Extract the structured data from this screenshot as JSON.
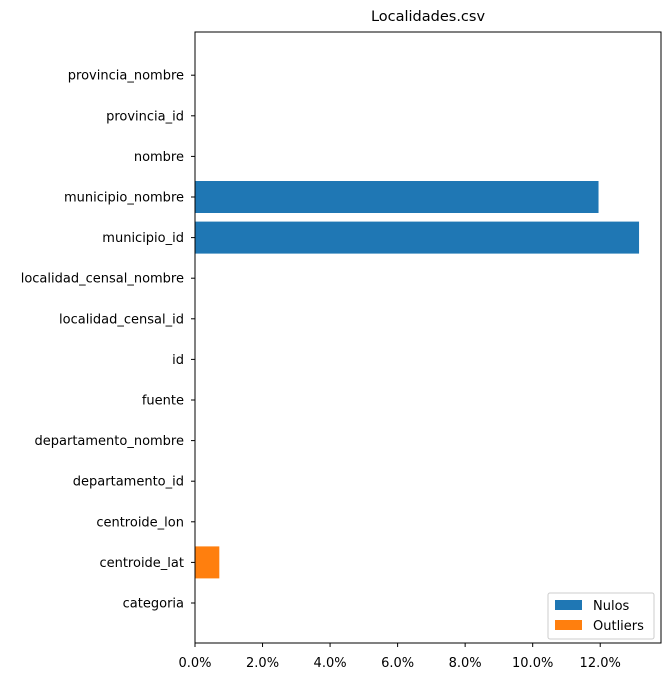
{
  "chart_data": {
    "type": "bar",
    "orientation": "horizontal",
    "title": "Localidades.csv",
    "xlabel": "",
    "ylabel": "",
    "categories": [
      "categoria",
      "centroide_lat",
      "centroide_lon",
      "departamento_id",
      "departamento_nombre",
      "fuente",
      "id",
      "localidad_censal_id",
      "localidad_censal_nombre",
      "municipio_id",
      "municipio_nombre",
      "nombre",
      "provincia_id",
      "provincia_nombre"
    ],
    "series": [
      {
        "name": "Nulos",
        "color": "#1f77b4",
        "values": [
          0,
          0,
          0,
          0,
          0,
          0,
          0,
          0,
          0,
          13.15,
          11.95,
          0,
          0,
          0
        ]
      },
      {
        "name": "Outliers",
        "color": "#ff7f0e",
        "values": [
          0,
          0.72,
          0,
          0,
          0,
          0,
          0,
          0,
          0,
          0,
          0,
          0,
          0,
          0
        ]
      }
    ],
    "xlim": [
      0,
      13.8
    ],
    "xticks": [
      0,
      2,
      4,
      6,
      8,
      10,
      12
    ],
    "xtick_labels": [
      "0.0%",
      "2.0%",
      "4.0%",
      "6.0%",
      "8.0%",
      "10.0%",
      "12.0%"
    ],
    "legend_position": "lower-right",
    "grid": false
  }
}
